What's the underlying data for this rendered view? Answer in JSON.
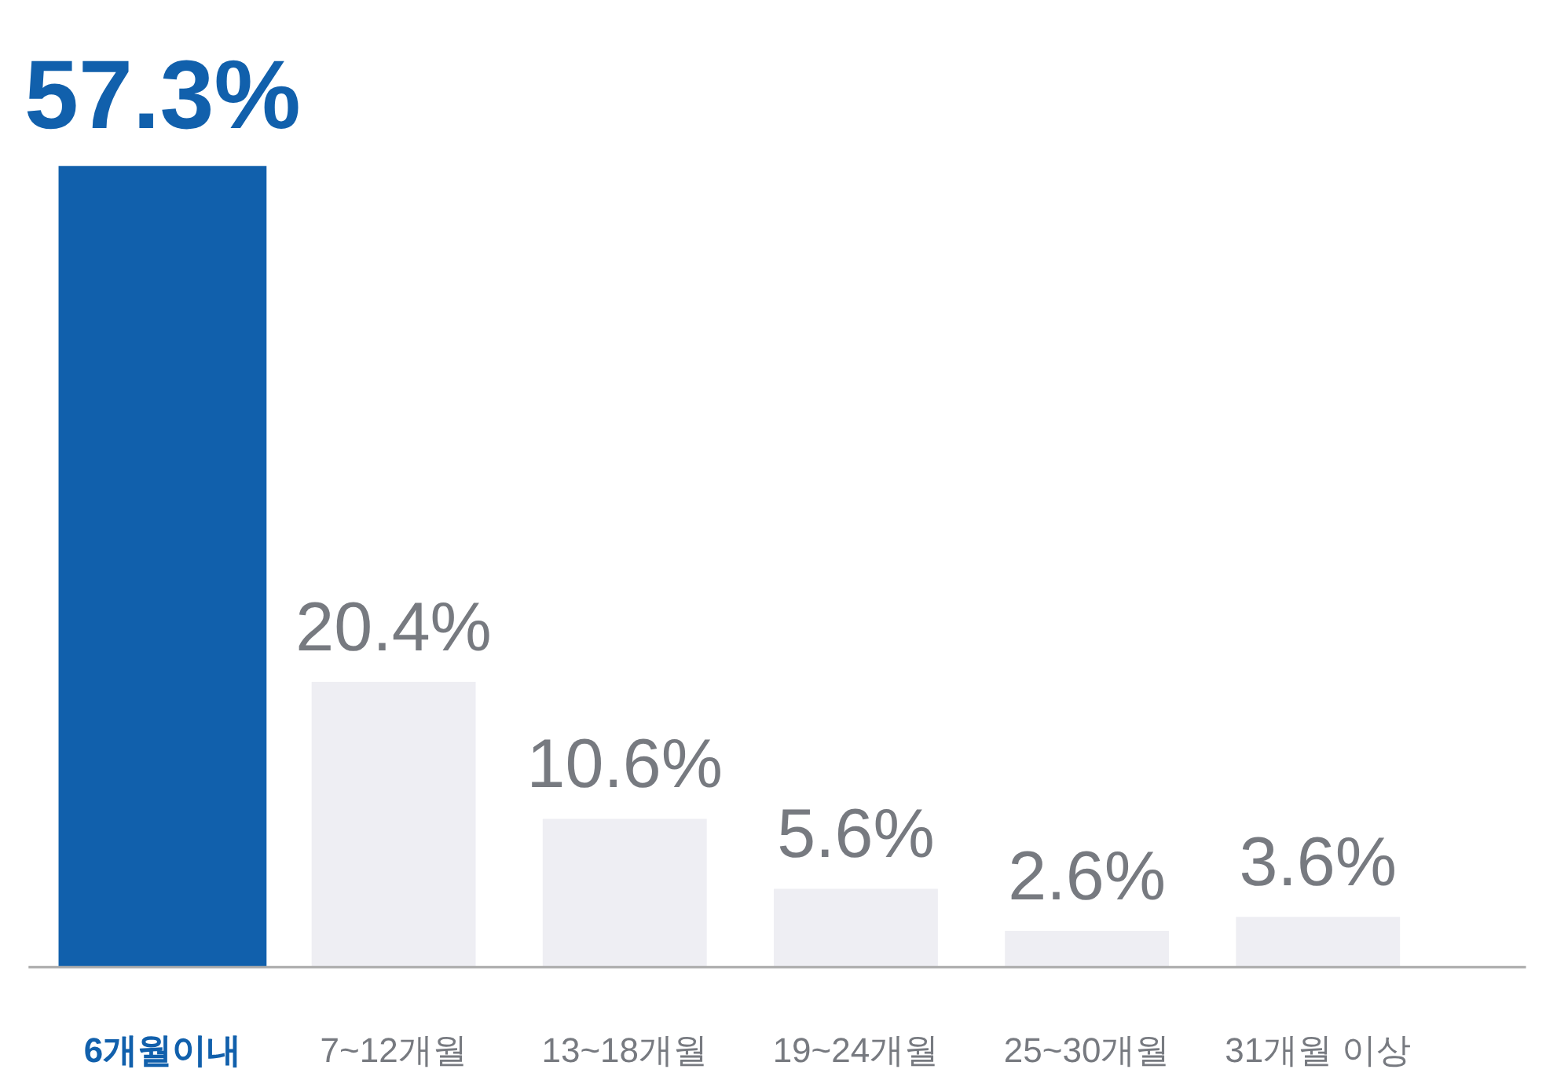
{
  "chart_data": {
    "type": "bar",
    "categories": [
      "6개월이내",
      "7~12개월",
      "13~18개월",
      "19~24개월",
      "25~30개월",
      "31개월 이상"
    ],
    "values": [
      57.3,
      20.4,
      10.6,
      5.6,
      2.6,
      3.6
    ],
    "value_labels": [
      "57.3%",
      "20.4%",
      "10.6%",
      "5.6%",
      "2.6%",
      "3.6%"
    ],
    "colors": [
      "#1160ac",
      "#eeeef3",
      "#eeeef3",
      "#eeeef3",
      "#eeeef3",
      "#eeeef3"
    ],
    "grid": false
  }
}
